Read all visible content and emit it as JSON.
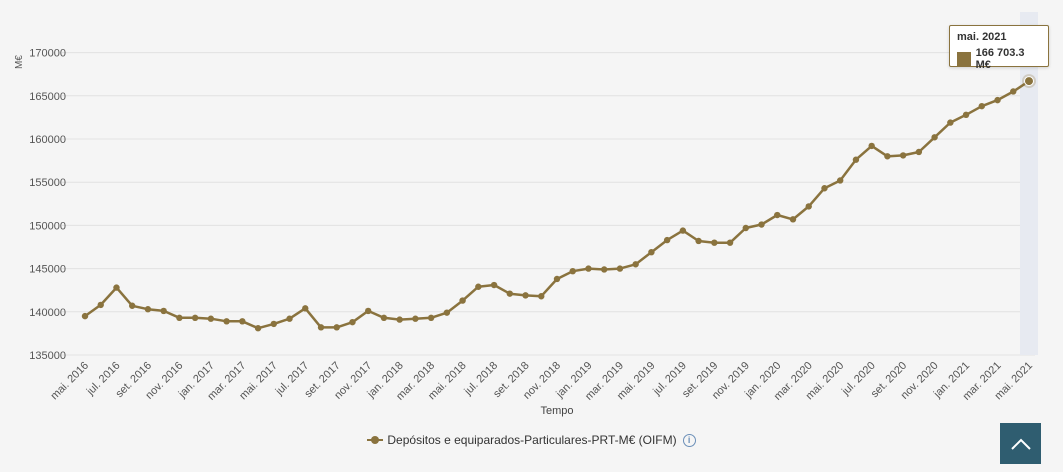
{
  "chart_data": {
    "type": "line",
    "ylabel": "M€",
    "xlabel": "Tempo",
    "ylim": [
      135000,
      172000
    ],
    "yticks": [
      135000,
      140000,
      145000,
      150000,
      155000,
      160000,
      165000,
      170000
    ],
    "ytick_labels": [
      "135000",
      "140000",
      "145000",
      "150000",
      "155000",
      "160000",
      "165000",
      "170000"
    ],
    "grid": true,
    "legend_position": "bottom",
    "categories": [
      "mai. 2016",
      "jun. 2016",
      "jul. 2016",
      "ago. 2016",
      "set. 2016",
      "out. 2016",
      "nov. 2016",
      "dez. 2016",
      "jan. 2017",
      "fev. 2017",
      "mar. 2017",
      "abr. 2017",
      "mai. 2017",
      "jun. 2017",
      "jul. 2017",
      "ago. 2017",
      "set. 2017",
      "out. 2017",
      "nov. 2017",
      "dez. 2017",
      "jan. 2018",
      "fev. 2018",
      "mar. 2018",
      "abr. 2018",
      "mai. 2018",
      "jun. 2018",
      "jul. 2018",
      "ago. 2018",
      "set. 2018",
      "out. 2018",
      "nov. 2018",
      "dez. 2018",
      "jan. 2019",
      "fev. 2019",
      "mar. 2019",
      "abr. 2019",
      "mai. 2019",
      "jun. 2019",
      "jul. 2019",
      "ago. 2019",
      "set. 2019",
      "out. 2019",
      "nov. 2019",
      "dez. 2019",
      "jan. 2020",
      "fev. 2020",
      "mar. 2020",
      "abr. 2020",
      "mai. 2020",
      "jun. 2020",
      "jul. 2020",
      "ago. 2020",
      "set. 2020",
      "out. 2020",
      "nov. 2020",
      "dez. 2020",
      "jan. 2021",
      "fev. 2021",
      "mar. 2021",
      "abr. 2021",
      "mai. 2021"
    ],
    "tick_labels_shown": [
      "mai. 2016",
      "jul. 2016",
      "set. 2016",
      "nov. 2016",
      "jan. 2017",
      "mar. 2017",
      "mai. 2017",
      "jul. 2017",
      "set. 2017",
      "nov. 2017",
      "jan. 2018",
      "mar. 2018",
      "mai. 2018",
      "jul. 2018",
      "set. 2018",
      "nov. 2018",
      "jan. 2019",
      "mar. 2019",
      "mai. 2019",
      "jul. 2019",
      "set. 2019",
      "nov. 2019",
      "jan. 2020",
      "mar. 2020",
      "mai. 2020",
      "jul. 2020",
      "set. 2020",
      "nov. 2020",
      "jan. 2021",
      "mar. 2021",
      "mai. 2021"
    ],
    "series": [
      {
        "name": "Depósitos e equiparados-Particulares-PRT-M€ (OIFM)",
        "color": "#8a733e",
        "values": [
          139500,
          140800,
          142800,
          140700,
          140300,
          140100,
          139300,
          139300,
          139200,
          138900,
          138900,
          138100,
          138600,
          139200,
          140400,
          138200,
          138200,
          138800,
          140100,
          139300,
          139100,
          139200,
          139300,
          139900,
          141300,
          142900,
          143100,
          142100,
          141900,
          141800,
          143800,
          144700,
          145000,
          144900,
          145000,
          145500,
          146900,
          148300,
          149400,
          148200,
          148000,
          148000,
          149700,
          150100,
          151200,
          150700,
          152200,
          154300,
          155200,
          157600,
          159200,
          158000,
          158100,
          158500,
          160200,
          161900,
          162800,
          163800,
          164500,
          165500,
          166703.3
        ]
      }
    ],
    "highlight_index": 60
  },
  "tooltip": {
    "title": "mai. 2021",
    "value": "166 703.3 M€"
  },
  "legend": {
    "label": "Depósitos e equiparados-Particulares-PRT-M€ (OIFM)",
    "info_glyph": "i"
  },
  "scroll_top": {
    "icon": "chevron-up-icon"
  }
}
